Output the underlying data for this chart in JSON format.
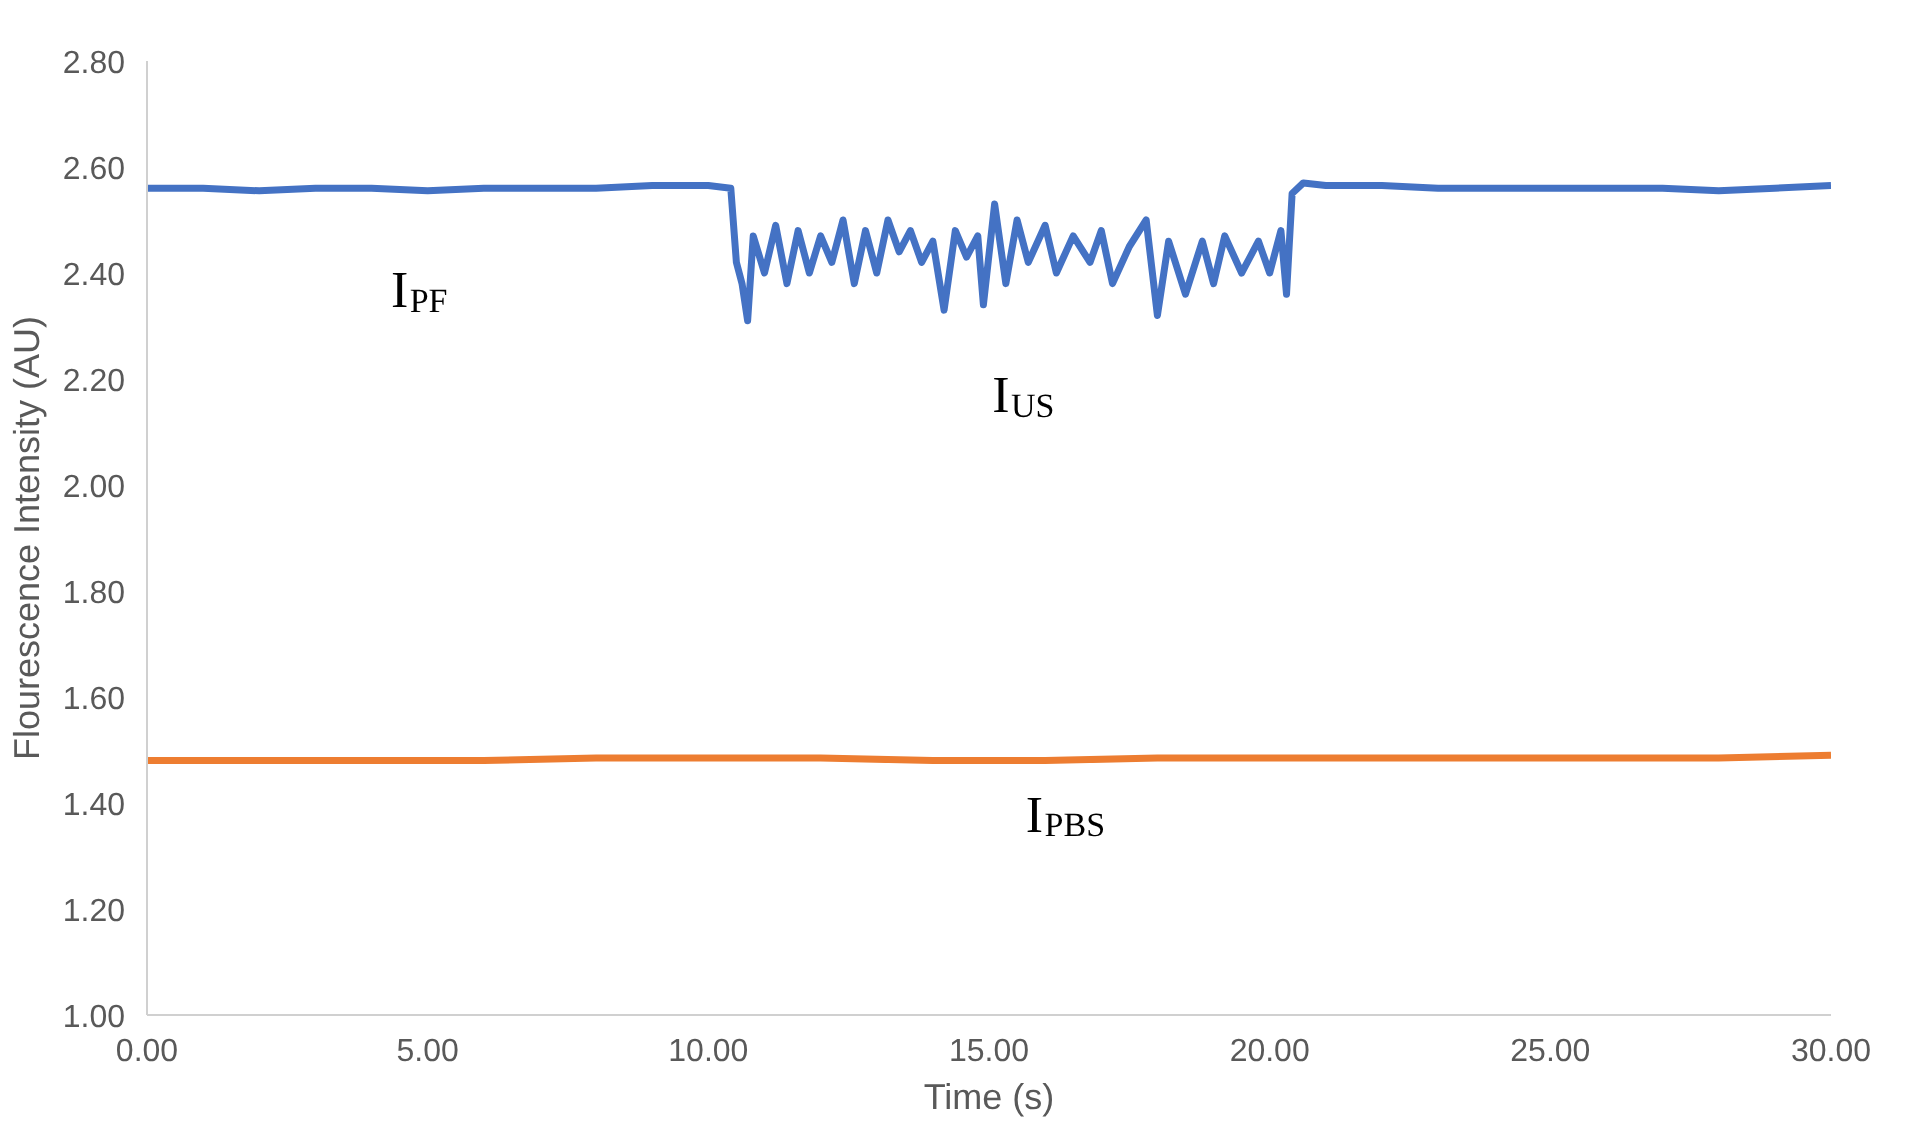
{
  "chart_data": {
    "type": "line",
    "xlabel": "Time (s)",
    "ylabel": "Flourescence Intensity (AU)",
    "xlim": [
      0,
      30
    ],
    "ylim": [
      1.0,
      2.8
    ],
    "xticks": [
      {
        "value": 0,
        "label": "0.00"
      },
      {
        "value": 5,
        "label": "5.00"
      },
      {
        "value": 10,
        "label": "10.00"
      },
      {
        "value": 15,
        "label": "15.00"
      },
      {
        "value": 20,
        "label": "20.00"
      },
      {
        "value": 25,
        "label": "25.00"
      },
      {
        "value": 30,
        "label": "30.00"
      }
    ],
    "yticks": [
      {
        "value": 1.0,
        "label": "1.00"
      },
      {
        "value": 1.2,
        "label": "1.20"
      },
      {
        "value": 1.4,
        "label": "1.40"
      },
      {
        "value": 1.6,
        "label": "1.60"
      },
      {
        "value": 1.8,
        "label": "1.80"
      },
      {
        "value": 2.0,
        "label": "2.00"
      },
      {
        "value": 2.2,
        "label": "2.20"
      },
      {
        "value": 2.4,
        "label": "2.40"
      },
      {
        "value": 2.6,
        "label": "2.60"
      },
      {
        "value": 2.8,
        "label": "2.80"
      }
    ],
    "grid": false,
    "series": [
      {
        "color": "#4472c4",
        "x": [
          0,
          1,
          2,
          3,
          4,
          5,
          6,
          7,
          8,
          9,
          10,
          10.4,
          10.5,
          10.6,
          10.7,
          10.8,
          11.0,
          11.2,
          11.4,
          11.6,
          11.8,
          12.0,
          12.2,
          12.4,
          12.6,
          12.8,
          13.0,
          13.2,
          13.4,
          13.6,
          13.8,
          14.0,
          14.2,
          14.4,
          14.6,
          14.8,
          14.9,
          15.1,
          15.3,
          15.5,
          15.7,
          16.0,
          16.2,
          16.5,
          16.8,
          17.0,
          17.2,
          17.5,
          17.8,
          18.0,
          18.2,
          18.5,
          18.8,
          19.0,
          19.2,
          19.5,
          19.8,
          20.0,
          20.2,
          20.3,
          20.4,
          20.6,
          21,
          22,
          23,
          24,
          25,
          26,
          27,
          28,
          29,
          30
        ],
        "values": [
          2.56,
          2.56,
          2.555,
          2.56,
          2.56,
          2.555,
          2.56,
          2.56,
          2.56,
          2.565,
          2.565,
          2.56,
          2.42,
          2.38,
          2.31,
          2.47,
          2.4,
          2.49,
          2.38,
          2.48,
          2.4,
          2.47,
          2.42,
          2.5,
          2.38,
          2.48,
          2.4,
          2.5,
          2.44,
          2.48,
          2.42,
          2.46,
          2.33,
          2.48,
          2.43,
          2.47,
          2.34,
          2.53,
          2.38,
          2.5,
          2.42,
          2.49,
          2.4,
          2.47,
          2.42,
          2.48,
          2.38,
          2.45,
          2.5,
          2.32,
          2.46,
          2.36,
          2.46,
          2.38,
          2.47,
          2.4,
          2.46,
          2.4,
          2.48,
          2.36,
          2.55,
          2.57,
          2.565,
          2.565,
          2.56,
          2.56,
          2.56,
          2.56,
          2.56,
          2.555,
          2.56,
          2.565
        ]
      },
      {
        "color": "#ed7d31",
        "x": [
          0,
          2,
          4,
          6,
          8,
          10,
          12,
          14,
          16,
          18,
          20,
          22,
          24,
          26,
          28,
          30
        ],
        "values": [
          1.48,
          1.48,
          1.48,
          1.48,
          1.485,
          1.485,
          1.485,
          1.48,
          1.48,
          1.485,
          1.485,
          1.485,
          1.485,
          1.485,
          1.485,
          1.49
        ]
      }
    ],
    "annotations": [
      "I$_{PF}$",
      "I$_{US}$",
      "I$_{PBS}$"
    ]
  }
}
